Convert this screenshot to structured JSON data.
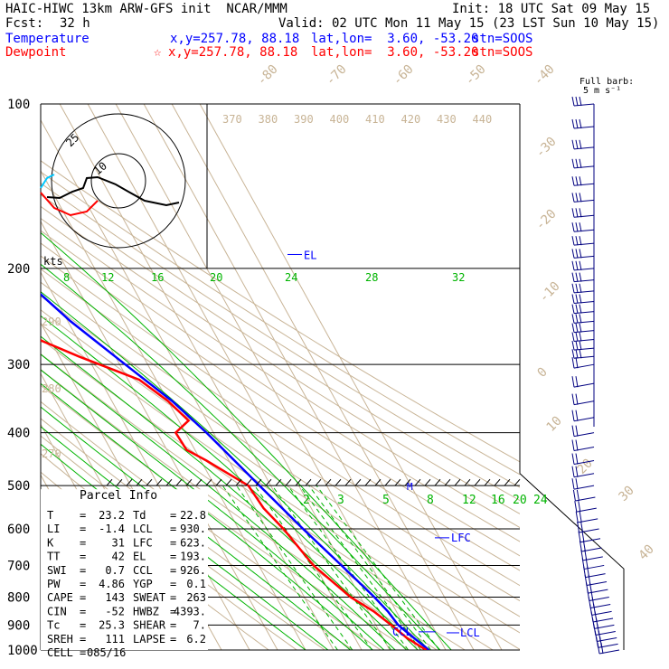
{
  "header": {
    "model_line": "HAIC-HIWC 13km ARW-GFS init  NCAR/MMM",
    "init_line": "Init: 18 UTC Sat 09 May 15",
    "fcst_label": "Fcst:",
    "fcst_value": "32 h",
    "valid_line": "Valid: 02 UTC Mon 11 May 15 (23 LST Sun 10 May 15)",
    "temperature_line": {
      "label": "Temperature",
      "xy": "x,y=257.78, 88.18",
      "latlon": "lat,lon=  3.60, -53.20",
      "stn": "stn=SOOS"
    },
    "dewpoint_line": {
      "label": "Dewpoint",
      "marker": "☆",
      "xy": "x,y=257.78, 88.18",
      "latlon": "lat,lon=  3.60, -53.20",
      "stn": "stn=SOOS"
    },
    "full_barb_label": "Full barb:",
    "full_barb_value": "5 m s⁻¹"
  },
  "colors": {
    "temperature": "#0000ff",
    "dewpoint": "#ff0000",
    "isotherm": "#c8b496",
    "adiabat": "#c8b496",
    "moist_adiabat": "#00b400",
    "mixing_ratio": "#00b400",
    "isobar": "#000000",
    "wind": "#000080"
  },
  "chart_data": {
    "type": "line",
    "subtype": "skew-t log-p sounding",
    "y_axis": {
      "quantity": "pressure (hPa)",
      "scale": "log",
      "range": [
        1000,
        100
      ],
      "ticks": [
        100,
        200,
        300,
        400,
        500,
        600,
        700,
        800,
        900,
        1000
      ]
    },
    "isotherm_labels": [
      -80,
      -70,
      -60,
      -50,
      -40,
      -30,
      -20,
      -10,
      0,
      10,
      20,
      30,
      40
    ],
    "theta_labels_upper": [
      370,
      380,
      390,
      400,
      410,
      420,
      430,
      440
    ],
    "theta_labels_left": [
      290,
      280,
      270
    ],
    "moist_adiabat_labels_upper": [
      8,
      12,
      16,
      20,
      24,
      28,
      32
    ],
    "mixing_ratio_labels": [
      2,
      3,
      5,
      8,
      12,
      16,
      20,
      24
    ],
    "levels": {
      "EL": "EL",
      "LFC": "LFC",
      "LCL": "LCL",
      "CCL": "CCL",
      "M": "M"
    },
    "series": [
      {
        "name": "Temperature",
        "points": [
          [
            1000,
            24.0
          ],
          [
            950,
            21.0
          ],
          [
            925,
            19.5
          ],
          [
            900,
            18.0
          ],
          [
            850,
            17.0
          ],
          [
            800,
            15.0
          ],
          [
            700,
            9.5
          ],
          [
            600,
            3.0
          ],
          [
            500,
            -4.0
          ],
          [
            450,
            -8.0
          ],
          [
            400,
            -12.5
          ],
          [
            350,
            -18.5
          ],
          [
            300,
            -28.0
          ],
          [
            250,
            -39.0
          ],
          [
            200,
            -49.5
          ],
          [
            150,
            -64.5
          ],
          [
            120,
            -76.0
          ],
          [
            110,
            -78.5
          ],
          [
            100,
            -79.0
          ]
        ]
      },
      {
        "name": "Dewpoint",
        "points": [
          [
            1000,
            23.0
          ],
          [
            950,
            18.5
          ],
          [
            925,
            17.0
          ],
          [
            900,
            15.5
          ],
          [
            850,
            12.0
          ],
          [
            800,
            6.5
          ],
          [
            700,
            -0.5
          ],
          [
            600,
            -4.0
          ],
          [
            550,
            -7.0
          ],
          [
            500,
            -8.0
          ],
          [
            450,
            -18.0
          ],
          [
            430,
            -23.0
          ],
          [
            400,
            -23.5
          ],
          [
            380,
            -16.5
          ],
          [
            350,
            -20.0
          ],
          [
            320,
            -26.0
          ],
          [
            290,
            -43.0
          ],
          [
            270,
            -54.0
          ],
          [
            250,
            -57.0
          ],
          [
            220,
            -58.0
          ],
          [
            200,
            -63.0
          ],
          [
            170,
            -75.0
          ],
          [
            150,
            -83.0
          ],
          [
            130,
            -88.0
          ],
          [
            110,
            -91.0
          ],
          [
            100,
            -93.0
          ]
        ]
      }
    ],
    "wind_barbs_pressures": [
      100,
      110,
      120,
      130,
      140,
      150,
      160,
      170,
      180,
      190,
      200,
      210,
      220,
      230,
      240,
      250,
      260,
      270,
      280,
      290,
      300,
      325,
      350,
      375,
      400,
      425,
      450,
      475,
      500,
      525,
      550,
      575,
      600,
      625,
      650,
      675,
      700,
      725,
      750,
      775,
      800,
      825,
      850,
      875,
      900,
      925,
      950,
      975,
      1000
    ]
  },
  "hodograph": {
    "rings": [
      "10",
      "25"
    ],
    "units": "kts"
  },
  "parcel_info": {
    "title": "Parcel Info",
    "rows": [
      {
        "l1": "T",
        "v1": "23.2",
        "l2": "Td",
        "v2": "22.8"
      },
      {
        "l1": "LI",
        "v1": "-1.4",
        "l2": "LCL",
        "v2": "930."
      },
      {
        "l1": "K",
        "v1": "31",
        "l2": "LFC",
        "v2": "623."
      },
      {
        "l1": "TT",
        "v1": "42",
        "l2": "EL",
        "v2": "193."
      },
      {
        "l1": "SWI",
        "v1": "0.7",
        "l2": "CCL",
        "v2": "926."
      },
      {
        "l1": "PW",
        "v1": "4.86",
        "l2": "YGP",
        "v2": "0.1"
      },
      {
        "l1": "CAPE",
        "v1": "143",
        "l2": "SWEAT",
        "v2": "263"
      },
      {
        "l1": "CIN",
        "v1": "-52",
        "l2": "HWBZ",
        "v2": "4393."
      },
      {
        "l1": "Tc",
        "v1": "25.3",
        "l2": "SHEAR",
        "v2": "7."
      },
      {
        "l1": "SREH",
        "v1": "111",
        "l2": "LAPSE",
        "v2": "6.2"
      },
      {
        "l1": "CELL",
        "v1": "085/16",
        "l2": "",
        "v2": ""
      }
    ]
  }
}
